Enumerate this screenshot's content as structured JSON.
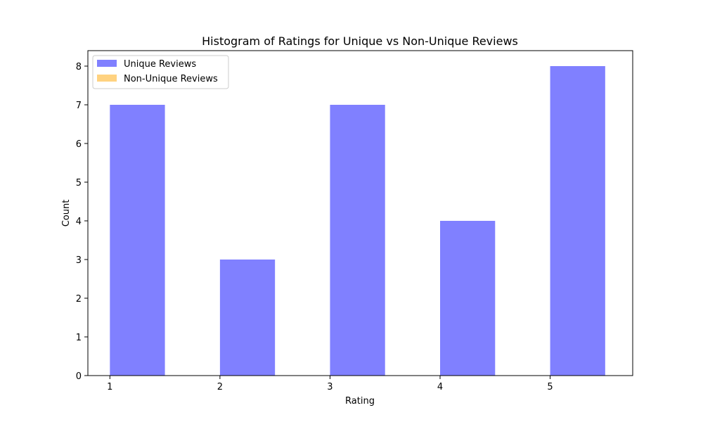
{
  "chart_data": {
    "type": "bar",
    "title": "Histogram of Ratings for Unique vs Non-Unique Reviews",
    "xlabel": "Rating",
    "ylabel": "Count",
    "xlim": [
      0.8,
      5.75
    ],
    "ylim": [
      0,
      8.4
    ],
    "xticks": [
      1,
      2,
      3,
      4,
      5
    ],
    "yticks": [
      0,
      1,
      2,
      3,
      4,
      5,
      6,
      7,
      8
    ],
    "bin_width": 0.5,
    "series": [
      {
        "name": "Unique Reviews",
        "color": "#8080ff",
        "bars": [
          {
            "x": 1,
            "value": 7
          },
          {
            "x": 2,
            "value": 3
          },
          {
            "x": 3,
            "value": 7
          },
          {
            "x": 4,
            "value": 4
          },
          {
            "x": 5,
            "value": 8
          }
        ]
      },
      {
        "name": "Non-Unique Reviews",
        "color": "#ffd280",
        "bars": []
      }
    ],
    "legend": {
      "position": "top-left"
    },
    "grid": false
  }
}
